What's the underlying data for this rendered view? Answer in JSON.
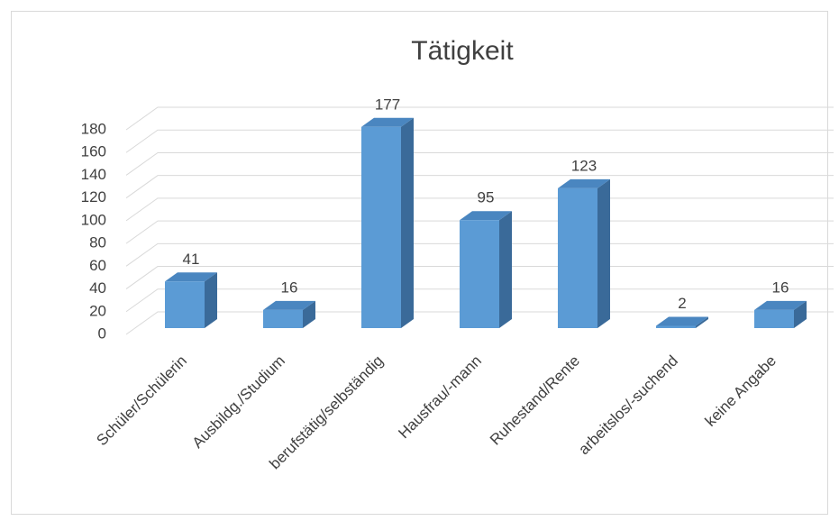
{
  "chart_data": {
    "type": "bar3d",
    "title": "Tätigkeit",
    "categories": [
      "Schüler/Schülerin",
      "Ausbildg./Studium",
      "berufstätig/selbständig",
      "Hausfrau/-mann",
      "Ruhestand/Rente",
      "arbeitslos/-suchend",
      "keine Angabe"
    ],
    "values": [
      41,
      16,
      177,
      95,
      123,
      2,
      16
    ],
    "color": "#5b9bd5",
    "ylim": [
      0,
      180
    ],
    "yticks": [
      0,
      20,
      40,
      60,
      80,
      100,
      120,
      140,
      160,
      180
    ],
    "grid": true
  }
}
